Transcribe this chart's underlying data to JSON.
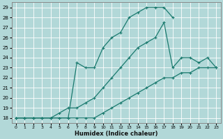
{
  "xlabel": "Humidex (Indice chaleur)",
  "background_color": "#b2d8d8",
  "grid_color": "#ffffff",
  "line_color": "#1a7a6e",
  "xlim": [
    -0.5,
    23.5
  ],
  "ylim": [
    17.5,
    29.5
  ],
  "yticks": [
    18,
    19,
    20,
    21,
    22,
    23,
    24,
    25,
    26,
    27,
    28,
    29
  ],
  "xticks": [
    0,
    1,
    2,
    3,
    4,
    5,
    6,
    7,
    8,
    9,
    10,
    11,
    12,
    13,
    14,
    15,
    16,
    17,
    18,
    19,
    20,
    21,
    22,
    23
  ],
  "line1_x": [
    0,
    1,
    2,
    3,
    4,
    5,
    6,
    7,
    8,
    9,
    10,
    11,
    12,
    13,
    14,
    15,
    16,
    17,
    18,
    19,
    20,
    21,
    22,
    23
  ],
  "line1_y": [
    18,
    18,
    18,
    18,
    18,
    18,
    18,
    18,
    18,
    18,
    18.5,
    19,
    19.5,
    20,
    20.5,
    21,
    21.5,
    22,
    22,
    22.5,
    22.5,
    23,
    23,
    23
  ],
  "line2_x": [
    0,
    1,
    2,
    3,
    4,
    5,
    6,
    7,
    8,
    9,
    10,
    11,
    12,
    13,
    14,
    15,
    16,
    17,
    18,
    19,
    20,
    21,
    22,
    23
  ],
  "line2_y": [
    18,
    18,
    18,
    18,
    18,
    18.5,
    19,
    19,
    19.5,
    20,
    21,
    22,
    23,
    24,
    25,
    25.5,
    26,
    27.5,
    23,
    24,
    24,
    23.5,
    24,
    23
  ],
  "line3_x": [
    0,
    1,
    2,
    3,
    4,
    5,
    6,
    7,
    8,
    9,
    10,
    11,
    12,
    13,
    14,
    15,
    16,
    17,
    18
  ],
  "line3_y": [
    18,
    18,
    18,
    18,
    18,
    18,
    18,
    23.5,
    23,
    23,
    25,
    26,
    26.5,
    28,
    28.5,
    29,
    29,
    29,
    28
  ]
}
